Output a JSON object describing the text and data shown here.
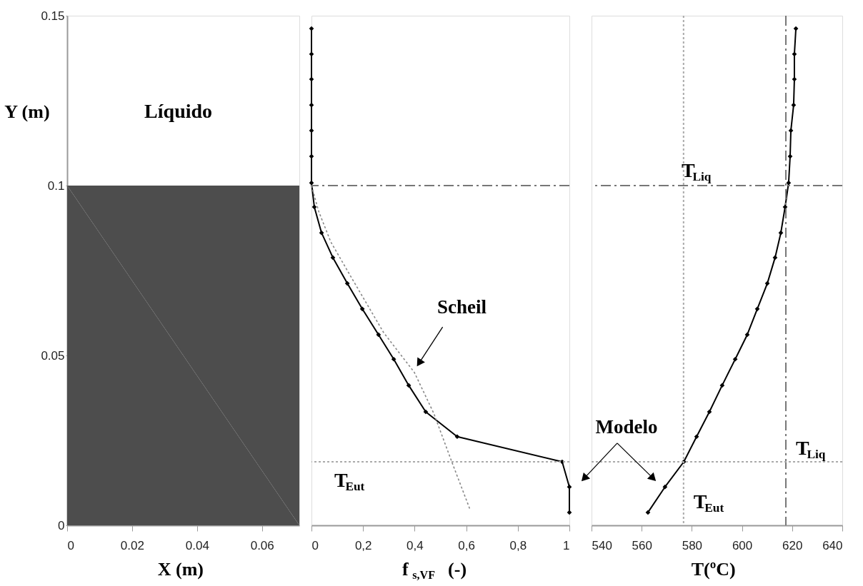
{
  "chart_data": [
    {
      "type": "area",
      "x": [
        0,
        0.0715
      ],
      "values": [
        0.1,
        0.1
      ],
      "color": "#4d4d4d",
      "xlabel": "X (m)",
      "ylabel": "Y (m)",
      "xlim": [
        0,
        0.0715
      ],
      "xticks": [
        0,
        0.02,
        0.04,
        0.06
      ],
      "ylim": [
        0,
        0.15
      ],
      "yticks": [
        0,
        0.05,
        0.1,
        0.15
      ],
      "annotations": [
        "Líquido"
      ]
    },
    {
      "type": "line",
      "xlabel": "f$_{s,VF}$ (-)",
      "xlim": [
        0,
        1
      ],
      "xticks": [
        0,
        {
          "value": 0.2,
          "label": "0,2"
        },
        {
          "value": 0.4,
          "label": "0,4"
        },
        {
          "value": 0.6,
          "label": "0,6"
        },
        {
          "value": 0.8,
          "label": "0,8"
        },
        1
      ],
      "ylim": [
        0,
        0.15
      ],
      "tick_labels": "x",
      "series": [
        {
          "color": "#000000",
          "marker": "diamond",
          "line_style": "solid",
          "x": [
            0,
            0,
            0,
            0,
            0,
            0,
            0,
            0.011,
            0.039,
            0.083,
            0.139,
            0.197,
            0.26,
            0.319,
            0.377,
            0.443,
            0.565,
            0.972,
            1.0,
            1.0
          ],
          "values": [
            0.1462,
            0.1387,
            0.1313,
            0.1237,
            0.1162,
            0.1086,
            0.1008,
            0.0937,
            0.0861,
            0.0788,
            0.0712,
            0.0637,
            0.0561,
            0.0489,
            0.0412,
            0.0334,
            0.0261,
            0.0187,
            0.0113,
            0.0038
          ]
        },
        {
          "color": "#888888",
          "marker": "none",
          "line_style": "dotted",
          "x": [
            0,
            0.028,
            0.075,
            0.155,
            0.28,
            0.399,
            0.474,
            0.546,
            0.615
          ],
          "values": [
            0.1,
            0.0924,
            0.0834,
            0.0729,
            0.0567,
            0.045,
            0.033,
            0.0183,
            0.0046
          ]
        }
      ],
      "ref_lines": [
        {
          "axis": "y",
          "value": 0.1,
          "color": "#777777",
          "line_style": "dashed"
        },
        {
          "axis": "y",
          "value": 0.0187,
          "label": "T$_{Eut}$",
          "color": "#aaaaaa",
          "line_style": "dotted"
        }
      ],
      "annotations": [
        {
          "text": "Scheil",
          "x": 0.42,
          "y": 0.0481
        }
      ]
    },
    {
      "type": "line",
      "xlabel": "T(ºC)",
      "xlim": [
        540,
        640
      ],
      "xticks": [
        540,
        560,
        580,
        600,
        620,
        640
      ],
      "ylim": [
        0,
        0.15
      ],
      "tick_labels": "x",
      "series": [
        {
          "color": "#000000",
          "marker": "diamond",
          "line_style": "solid",
          "x": [
            621.5,
            620.9,
            620.9,
            620.6,
            619.5,
            619.2,
            618.6,
            617.2,
            615.5,
            613.2,
            610.1,
            606.1,
            602.1,
            597.3,
            592.1,
            587.0,
            581.9,
            576.8,
            569.3,
            562.5
          ],
          "values": [
            0.1462,
            0.1387,
            0.1313,
            0.1237,
            0.1162,
            0.1086,
            0.1008,
            0.0937,
            0.0861,
            0.0788,
            0.0712,
            0.0637,
            0.0561,
            0.0489,
            0.0412,
            0.0334,
            0.0261,
            0.0187,
            0.0113,
            0.0038
          ]
        }
      ],
      "ref_lines": [
        {
          "axis": "y",
          "value": 0.1,
          "label": "T$_{Liq}$",
          "color": "#777777",
          "line_style": "dashed"
        },
        {
          "axis": "x",
          "value": 617.5,
          "label": "T$_{Liq}$",
          "color": "#777777",
          "line_style": "dashed"
        },
        {
          "axis": "x",
          "value": 576.7,
          "label": "T$_{Eut}$",
          "color": "#aaaaaa",
          "line_style": "dotted"
        },
        {
          "axis": "y",
          "value": 0.0187,
          "color": "#aaaaaa",
          "line_style": "dotted"
        }
      ],
      "annotations": [
        {
          "text": "Modelo",
          "x": 564.2,
          "y": 0.0141
        }
      ]
    }
  ]
}
